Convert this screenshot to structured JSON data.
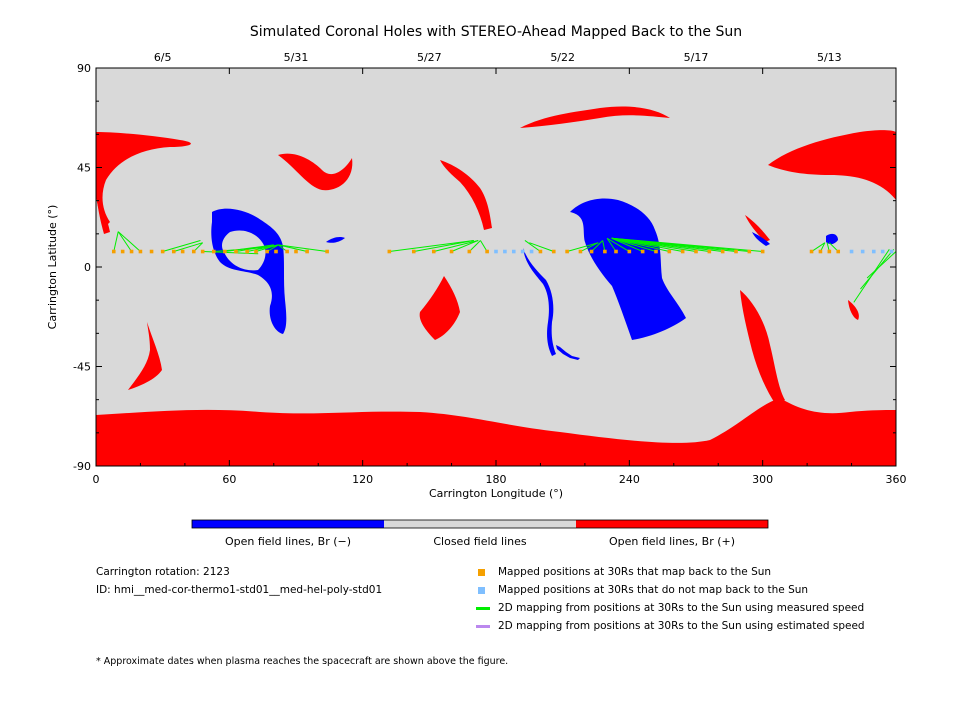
{
  "chart_data": {
    "type": "scatter",
    "title": "Simulated Coronal Holes with STEREO-Ahead Mapped Back to the Sun",
    "xlabel": "Carrington Longitude (°)",
    "ylabel": "Carrington Latitude (°)",
    "xlim": [
      0,
      360
    ],
    "ylim": [
      -90,
      90
    ],
    "x_ticks": [
      0,
      60,
      120,
      180,
      240,
      300,
      360
    ],
    "y_ticks": [
      -90,
      -45,
      0,
      45,
      90
    ],
    "top_axis_dates": [
      {
        "label": "6/5",
        "longitude": 30
      },
      {
        "label": "5/31",
        "longitude": 90
      },
      {
        "label": "5/27",
        "longitude": 150
      },
      {
        "label": "5/22",
        "longitude": 210
      },
      {
        "label": "5/17",
        "longitude": 270
      },
      {
        "label": "5/13",
        "longitude": 330
      }
    ],
    "colors": {
      "closed": "#d9d9d9",
      "open_negative": "#0000ff",
      "open_positive": "#ff0000",
      "mapped": "#f5a000",
      "unmapped": "#7fbfff",
      "measured_speed": "#00ee00",
      "estimated_speed": "#bb88ee"
    },
    "colorbar_labels": [
      "Open field lines, Br (−)",
      "Closed field lines",
      "Open field lines, Br (+)"
    ],
    "series": [
      {
        "name": "Mapped positions at 30Rs that map back to the Sun",
        "points": [
          [
            8,
            7
          ],
          [
            12,
            7
          ],
          [
            16,
            7
          ],
          [
            20,
            7
          ],
          [
            25,
            7
          ],
          [
            30,
            7
          ],
          [
            35,
            7
          ],
          [
            39,
            7
          ],
          [
            44,
            7
          ],
          [
            48,
            7
          ],
          [
            53,
            7
          ],
          [
            58,
            7
          ],
          [
            63,
            7
          ],
          [
            68,
            7
          ],
          [
            72,
            7
          ],
          [
            77,
            7
          ],
          [
            81,
            7
          ],
          [
            86,
            7
          ],
          [
            90,
            7
          ],
          [
            95,
            7
          ],
          [
            104,
            7
          ],
          [
            132,
            7
          ],
          [
            143,
            7
          ],
          [
            152,
            7
          ],
          [
            160,
            7
          ],
          [
            168,
            7
          ],
          [
            176,
            7
          ],
          [
            200,
            7
          ],
          [
            206,
            7
          ],
          [
            212,
            7
          ],
          [
            218,
            7
          ],
          [
            223,
            7
          ],
          [
            229,
            7
          ],
          [
            234,
            7
          ],
          [
            240,
            7
          ],
          [
            246,
            7
          ],
          [
            252,
            7
          ],
          [
            258,
            7
          ],
          [
            264,
            7
          ],
          [
            270,
            7
          ],
          [
            276,
            7
          ],
          [
            282,
            7
          ],
          [
            288,
            7
          ],
          [
            294,
            7
          ],
          [
            300,
            7
          ],
          [
            322,
            7
          ],
          [
            326,
            7
          ],
          [
            330,
            7
          ],
          [
            334,
            7
          ]
        ]
      },
      {
        "name": "Mapped positions at 30Rs that do not map back to the Sun",
        "points": [
          [
            180,
            7
          ],
          [
            184,
            7
          ],
          [
            188,
            7
          ],
          [
            192,
            7
          ],
          [
            196,
            7
          ],
          [
            340,
            7
          ],
          [
            345,
            7
          ],
          [
            350,
            7
          ],
          [
            354,
            7
          ],
          [
            358,
            7
          ]
        ]
      },
      {
        "name": "2D mapping from positions at 30Rs to the Sun using measured speed",
        "segments": [
          [
            [
              8,
              7
            ],
            [
              10,
              16
            ]
          ],
          [
            [
              16,
              7
            ],
            [
              10,
              16
            ]
          ],
          [
            [
              20,
              7
            ],
            [
              10,
              16
            ]
          ],
          [
            [
              35,
              7
            ],
            [
              48,
              11
            ]
          ],
          [
            [
              44,
              7
            ],
            [
              48,
              11
            ]
          ],
          [
            [
              30,
              7
            ],
            [
              47,
              12
            ]
          ],
          [
            [
              48,
              7
            ],
            [
              73,
              6
            ]
          ],
          [
            [
              53,
              7
            ],
            [
              78,
              9
            ]
          ],
          [
            [
              58,
              7
            ],
            [
              80,
              10
            ]
          ],
          [
            [
              63,
              7
            ],
            [
              80,
              10
            ]
          ],
          [
            [
              68,
              7
            ],
            [
              82,
              10
            ]
          ],
          [
            [
              72,
              7
            ],
            [
              82,
              10
            ]
          ],
          [
            [
              77,
              7
            ],
            [
              82,
              10
            ]
          ],
          [
            [
              86,
              7
            ],
            [
              82,
              10
            ]
          ],
          [
            [
              95,
              7
            ],
            [
              82,
              10
            ]
          ],
          [
            [
              104,
              7
            ],
            [
              82,
              10
            ]
          ],
          [
            [
              132,
              7
            ],
            [
              170,
              12
            ]
          ],
          [
            [
              143,
              7
            ],
            [
              170,
              12
            ]
          ],
          [
            [
              152,
              7
            ],
            [
              172,
              12
            ]
          ],
          [
            [
              160,
              7
            ],
            [
              172,
              12
            ]
          ],
          [
            [
              168,
              7
            ],
            [
              173,
              12
            ]
          ],
          [
            [
              176,
              7
            ],
            [
              173,
              12
            ]
          ],
          [
            [
              200,
              7
            ],
            [
              193,
              12
            ]
          ],
          [
            [
              206,
              7
            ],
            [
              195,
              11
            ]
          ],
          [
            [
              212,
              7
            ],
            [
              226,
              11
            ]
          ],
          [
            [
              218,
              7
            ],
            [
              226,
              11
            ]
          ],
          [
            [
              223,
              7
            ],
            [
              228,
              12
            ]
          ],
          [
            [
              229,
              7
            ],
            [
              228,
              12
            ]
          ],
          [
            [
              234,
              7
            ],
            [
              230,
              13
            ]
          ],
          [
            [
              240,
              7
            ],
            [
              230,
              13
            ]
          ],
          [
            [
              246,
              7
            ],
            [
              232,
              13
            ]
          ],
          [
            [
              252,
              7
            ],
            [
              232,
              13
            ]
          ],
          [
            [
              258,
              7
            ],
            [
              232,
              13
            ]
          ],
          [
            [
              264,
              7
            ],
            [
              232,
              13
            ]
          ],
          [
            [
              270,
              7
            ],
            [
              232,
              13
            ]
          ],
          [
            [
              276,
              7
            ],
            [
              232,
              13
            ]
          ],
          [
            [
              282,
              7
            ],
            [
              232,
              13
            ]
          ],
          [
            [
              288,
              7
            ],
            [
              232,
              13
            ]
          ],
          [
            [
              294,
              7
            ],
            [
              232,
              13
            ]
          ],
          [
            [
              300,
              7
            ],
            [
              232,
              13
            ]
          ],
          [
            [
              322,
              7
            ],
            [
              328,
              11
            ]
          ],
          [
            [
              326,
              7
            ],
            [
              328,
              11
            ]
          ],
          [
            [
              330,
              7
            ],
            [
              329,
              11
            ]
          ],
          [
            [
              334,
              7
            ],
            [
              330,
              11
            ]
          ],
          [
            [
              341,
              -16
            ],
            [
              357,
              8
            ]
          ],
          [
            [
              344,
              -10
            ],
            [
              359,
              8
            ]
          ],
          [
            [
              347,
              -5
            ],
            [
              360,
              7
            ]
          ]
        ]
      },
      {
        "name": "2D mapping from positions at 30Rs to the Sun using estimated speed",
        "segments": []
      }
    ]
  },
  "footer": {
    "carrington_rotation": "Carrington rotation: 2123",
    "id": "ID: hmi__med-cor-thermo1-std01__med-hel-poly-std01",
    "note": "* Approximate dates when plasma reaches the spacecraft are shown above the figure."
  }
}
